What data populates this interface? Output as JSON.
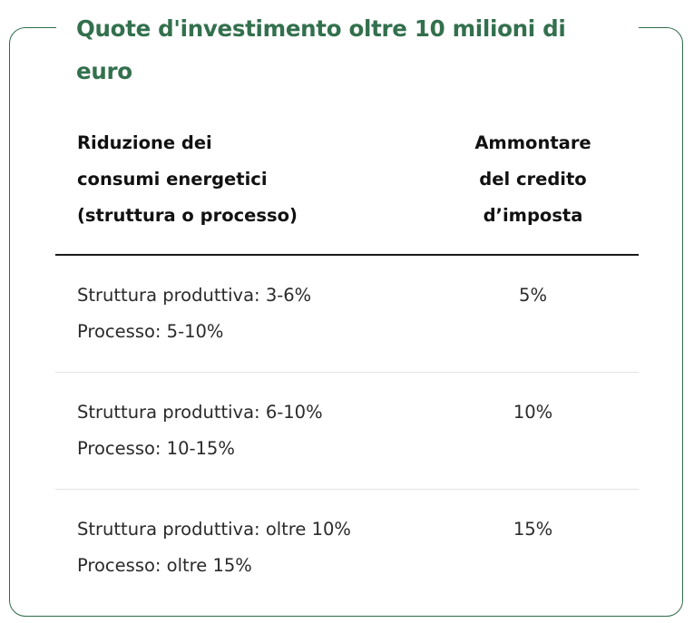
{
  "title": "Quote d'investimento oltre 10 milioni di euro",
  "table": {
    "headers": {
      "left": [
        "Riduzione dei",
        "consumi energetici",
        "(struttura o processo)"
      ],
      "right": [
        "Ammontare",
        "del credito",
        "d’imposta"
      ]
    },
    "rows": [
      {
        "struttura": "Struttura produttiva: 3-6%",
        "processo": "Processo: 5-10%",
        "credito": "5%"
      },
      {
        "struttura": "Struttura produttiva: 6-10%",
        "processo": "Processo: 10-15%",
        "credito": "10%"
      },
      {
        "struttura": "Struttura produttiva: oltre 10%",
        "processo": "Processo: oltre 15%",
        "credito": "15%"
      }
    ]
  },
  "colors": {
    "accent": "#33704d",
    "border": "#2e6b49"
  }
}
